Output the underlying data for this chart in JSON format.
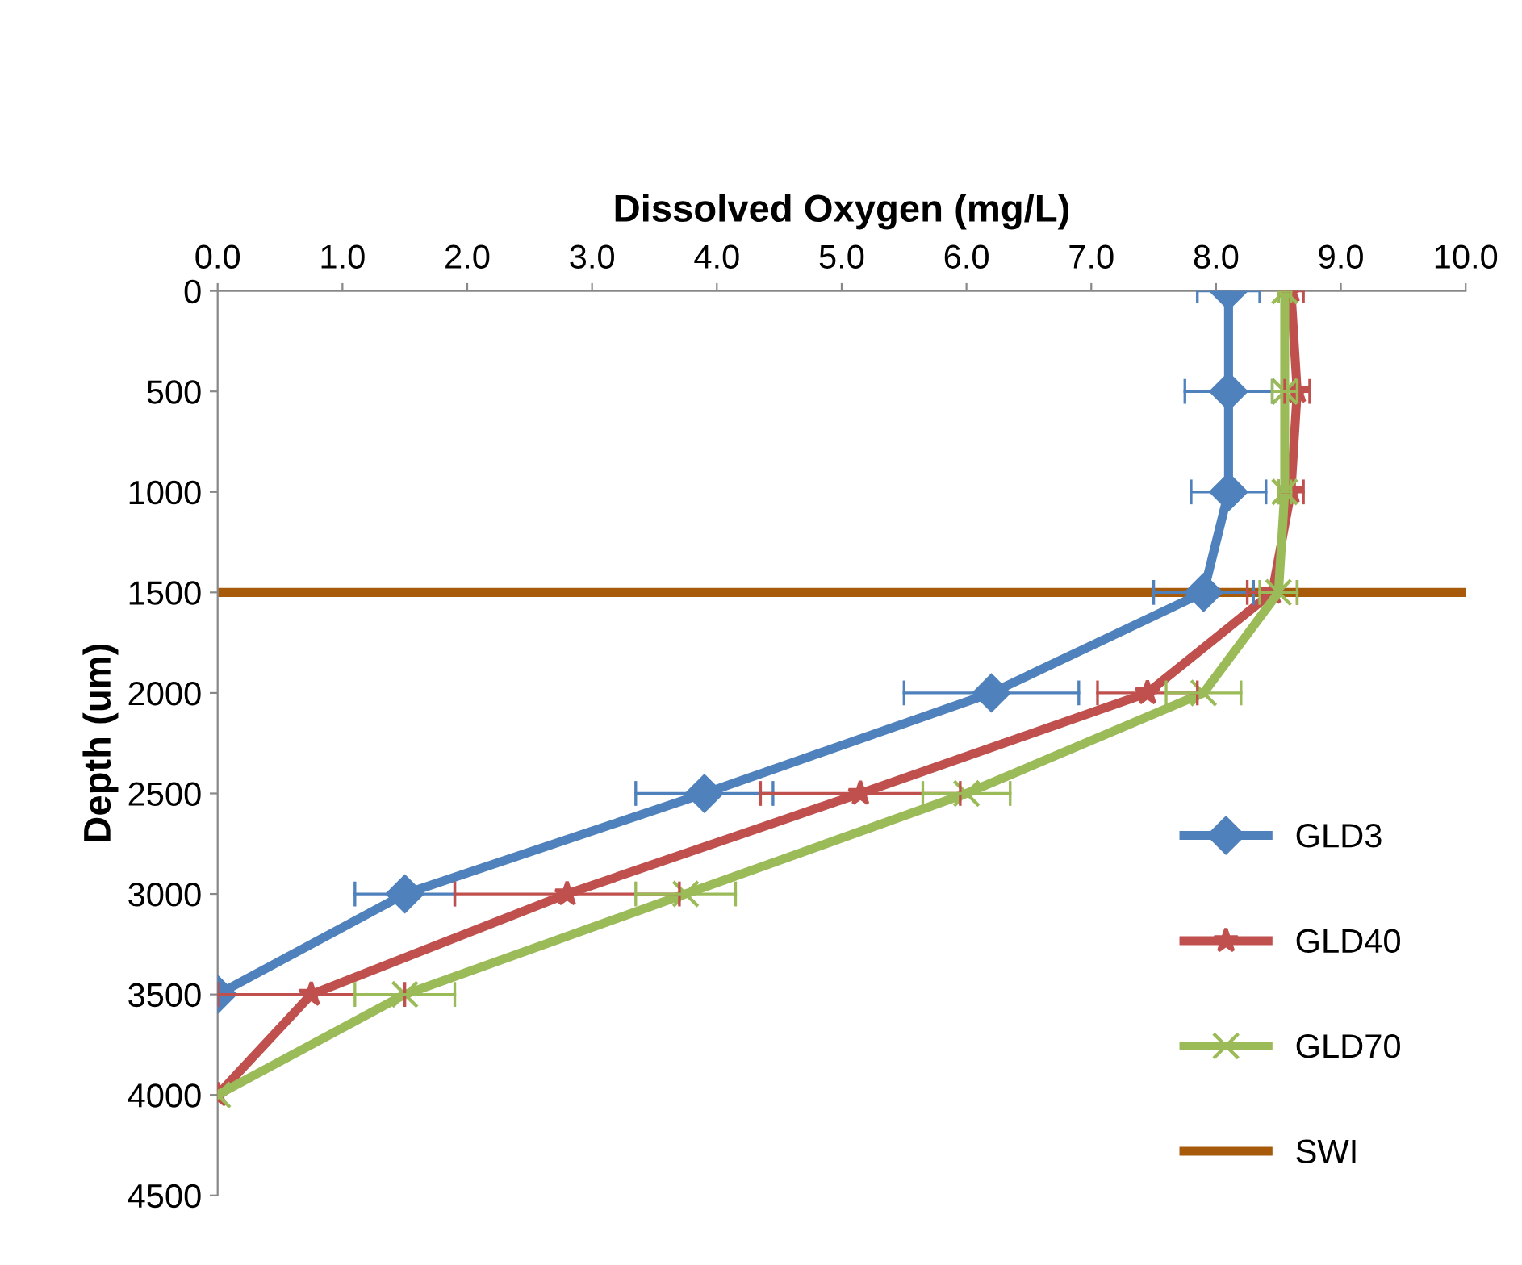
{
  "chart_data": {
    "type": "line",
    "orientation": "horizontal",
    "xlabel": "Dissolved Oxygen (mg/L)",
    "ylabel": "Depth (um)",
    "x": [
      0,
      500,
      1000,
      1500,
      2000,
      2500,
      3000,
      3500,
      4000
    ],
    "series": [
      {
        "name": "GLD3",
        "color": "#4f81bd",
        "marker": "diamond",
        "values": [
          8.1,
          8.1,
          8.1,
          7.9,
          6.2,
          3.9,
          1.5,
          0.0,
          null
        ],
        "errors": [
          0.25,
          0.35,
          0.3,
          0.4,
          0.7,
          0.55,
          0.4,
          null,
          null
        ]
      },
      {
        "name": "GLD40",
        "color": "#c0504d",
        "marker": "star",
        "values": [
          8.6,
          8.65,
          8.6,
          8.45,
          7.45,
          5.15,
          2.8,
          0.75,
          0.0
        ],
        "errors": [
          0.1,
          0.1,
          0.1,
          0.2,
          0.4,
          0.8,
          0.9,
          0.75,
          null
        ]
      },
      {
        "name": "GLD70",
        "color": "#9bbb59",
        "marker": "cross",
        "values": [
          8.55,
          8.55,
          8.55,
          8.5,
          7.9,
          6.0,
          3.75,
          1.5,
          0.0
        ],
        "errors": [
          0.05,
          0.1,
          0.05,
          0.15,
          0.3,
          0.35,
          0.4,
          0.4,
          null
        ]
      }
    ],
    "ref_lines": [
      {
        "axis": "y",
        "value": 1500,
        "label": "SWI",
        "color": "#a65a0a"
      }
    ],
    "xlim": [
      0,
      10
    ],
    "xticks": [
      {
        "value": 0,
        "label": "0.0"
      },
      {
        "value": 1,
        "label": "1.0"
      },
      {
        "value": 2,
        "label": "2.0"
      },
      {
        "value": 3,
        "label": "3.0"
      },
      {
        "value": 4,
        "label": "4.0"
      },
      {
        "value": 5,
        "label": "5.0"
      },
      {
        "value": 6,
        "label": "6.0"
      },
      {
        "value": 7,
        "label": "7.0"
      },
      {
        "value": 8,
        "label": "8.0"
      },
      {
        "value": 9,
        "label": "9.0"
      },
      {
        "value": 10,
        "label": "10.0"
      }
    ],
    "ylim": [
      4500,
      0
    ],
    "yticks": [
      0,
      500,
      1000,
      1500,
      2000,
      2500,
      3000,
      3500,
      4000,
      4500
    ],
    "grid": false,
    "legend": "right",
    "line_style": "solid"
  }
}
